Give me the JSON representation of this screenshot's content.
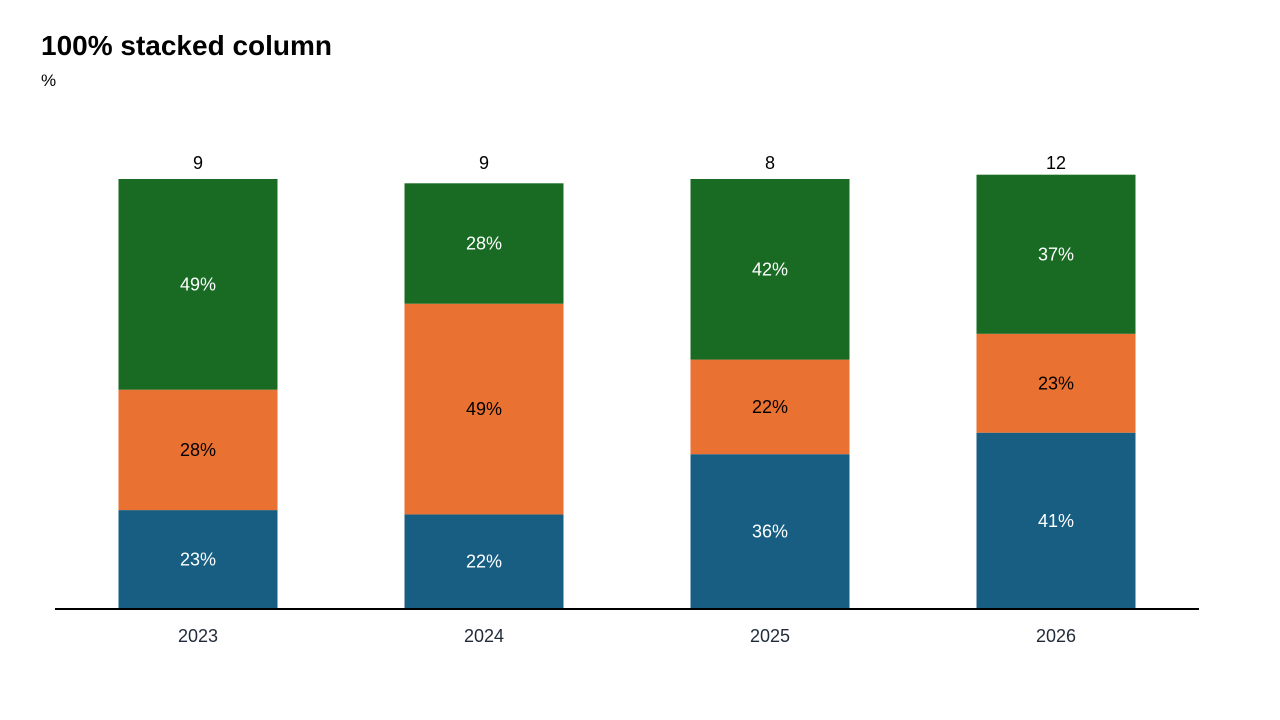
{
  "chart_data": {
    "type": "bar",
    "stacked": "percent",
    "title": "100% stacked column",
    "subtitle": "%",
    "categories": [
      "2023",
      "2024",
      "2025",
      "2026"
    ],
    "totals": [
      "9",
      "9",
      "8",
      "12"
    ],
    "series": [
      {
        "values": [
          23,
          22,
          36,
          41
        ],
        "labels": [
          "23%",
          "22%",
          "36%",
          "41%"
        ],
        "color": "#175e82",
        "label_color": "#ffffff"
      },
      {
        "values": [
          28,
          49,
          22,
          23
        ],
        "labels": [
          "28%",
          "49%",
          "22%",
          "23%"
        ],
        "color": "#e97132",
        "label_color": "#000000"
      },
      {
        "values": [
          49,
          28,
          42,
          37
        ],
        "labels": [
          "49%",
          "28%",
          "42%",
          "37%"
        ],
        "color": "#196b24",
        "label_color": "#ffffff"
      }
    ],
    "ylim": [
      0,
      100
    ],
    "grid": false,
    "legend": "none"
  }
}
